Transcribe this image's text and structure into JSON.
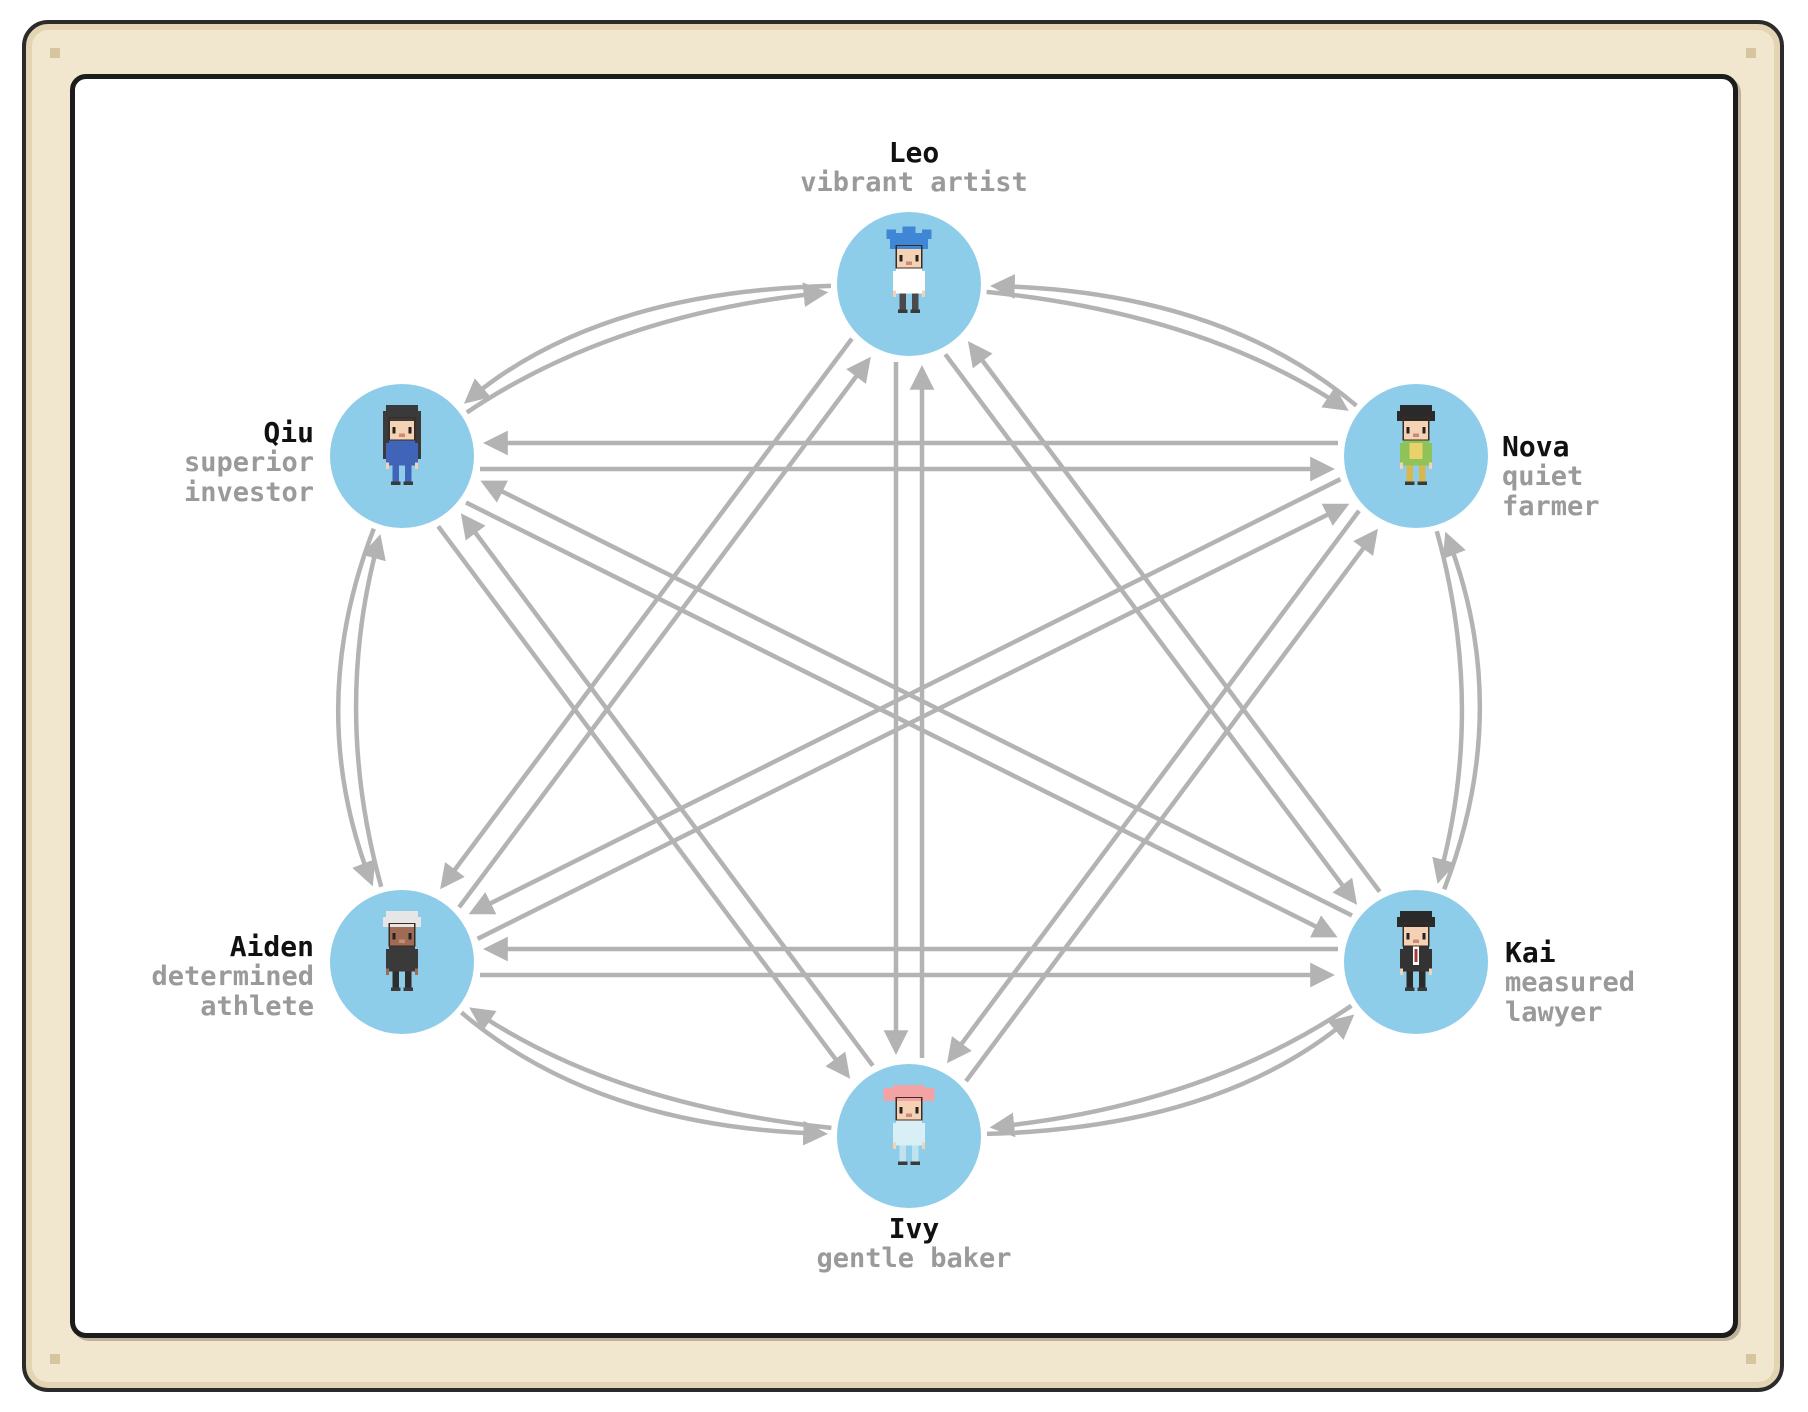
{
  "colors": {
    "node_fill": "#8ecdea",
    "edge": "#b3b3b3",
    "name_text": "#111111",
    "role_text": "#9a9a9a",
    "frame": "#f1e7cf"
  },
  "nodes": [
    {
      "id": "leo",
      "name": "Leo",
      "role_lines": [
        "vibrant artist"
      ],
      "icon": "blue-haired-artist-icon",
      "hair": "#3f86d6",
      "shirt": "#ffffff",
      "pants": "#4a4a4a"
    },
    {
      "id": "nova",
      "name": "Nova",
      "role_lines": [
        "quiet",
        "farmer"
      ],
      "icon": "farmer-girl-icon",
      "hair": "#2a2a2a",
      "shirt": "#8fc35a",
      "pants": "#d9b84a"
    },
    {
      "id": "kai",
      "name": "Kai",
      "role_lines": [
        "measured",
        "lawyer"
      ],
      "icon": "suited-lawyer-icon",
      "hair": "#2a2a2a",
      "shirt": "#333333",
      "pants": "#2a2a2a"
    },
    {
      "id": "ivy",
      "name": "Ivy",
      "role_lines": [
        "gentle baker"
      ],
      "icon": "pink-haired-baker-icon",
      "hair": "#f3a3a3",
      "shirt": "#d8f0f5",
      "pants": "#bfe3ec"
    },
    {
      "id": "aiden",
      "name": "Aiden",
      "role_lines": [
        "determined",
        "athlete"
      ],
      "icon": "white-haired-athlete-icon",
      "hair": "#e6e6e6",
      "shirt": "#3a3a3a",
      "pants": "#2e2e2e"
    },
    {
      "id": "qiu",
      "name": "Qiu",
      "role_lines": [
        "superior",
        "investor"
      ],
      "icon": "long-haired-investor-icon",
      "hair": "#3a3a3a",
      "shirt": "#3f64b8",
      "pants": "#3f64b8"
    }
  ],
  "edges": [
    [
      "leo",
      "nova"
    ],
    [
      "nova",
      "leo"
    ],
    [
      "leo",
      "kai"
    ],
    [
      "kai",
      "leo"
    ],
    [
      "leo",
      "ivy"
    ],
    [
      "ivy",
      "leo"
    ],
    [
      "leo",
      "aiden"
    ],
    [
      "aiden",
      "leo"
    ],
    [
      "leo",
      "qiu"
    ],
    [
      "qiu",
      "leo"
    ],
    [
      "nova",
      "kai"
    ],
    [
      "kai",
      "nova"
    ],
    [
      "nova",
      "ivy"
    ],
    [
      "ivy",
      "nova"
    ],
    [
      "nova",
      "aiden"
    ],
    [
      "aiden",
      "nova"
    ],
    [
      "nova",
      "qiu"
    ],
    [
      "qiu",
      "nova"
    ],
    [
      "kai",
      "ivy"
    ],
    [
      "ivy",
      "kai"
    ],
    [
      "kai",
      "aiden"
    ],
    [
      "aiden",
      "kai"
    ],
    [
      "kai",
      "qiu"
    ],
    [
      "qiu",
      "kai"
    ],
    [
      "ivy",
      "aiden"
    ],
    [
      "aiden",
      "ivy"
    ],
    [
      "ivy",
      "qiu"
    ],
    [
      "qiu",
      "ivy"
    ],
    [
      "aiden",
      "qiu"
    ],
    [
      "qiu",
      "aiden"
    ]
  ]
}
